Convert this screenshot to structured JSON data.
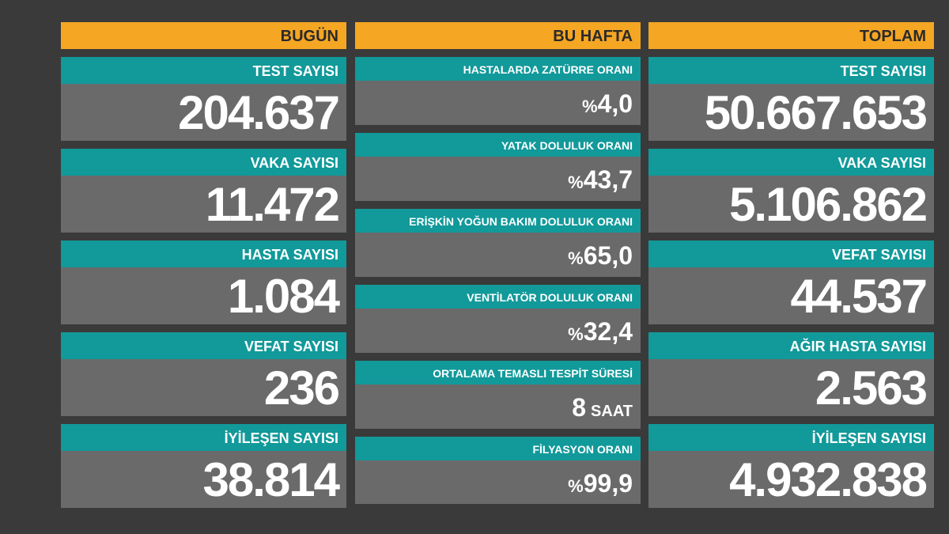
{
  "columns": [
    {
      "header": "BUGÜN",
      "items": [
        {
          "label": "TEST SAYISI",
          "value": "204.637"
        },
        {
          "label": "VAKA SAYISI",
          "value": "11.472"
        },
        {
          "label": "HASTA SAYISI",
          "value": "1.084"
        },
        {
          "label": "VEFAT SAYISI",
          "value": "236"
        },
        {
          "label": "İYİLEŞEN SAYISI",
          "value": "38.814"
        }
      ]
    },
    {
      "header": "BU HAFTA",
      "items": [
        {
          "label": "HASTALARDA ZATÜRRE ORANI",
          "prefix": "%",
          "value": "4,0"
        },
        {
          "label": "YATAK DOLULUK ORANI",
          "prefix": "%",
          "value": "43,7"
        },
        {
          "label": "ERİŞKİN YOĞUN BAKIM DOLULUK ORANI",
          "prefix": "%",
          "value": "65,0"
        },
        {
          "label": "VENTİLATÖR DOLULUK ORANI",
          "prefix": "%",
          "value": "32,4"
        },
        {
          "label": "ORTALAMA TEMASLI TESPİT SÜRESİ",
          "value": "8",
          "suffix": "SAAT"
        },
        {
          "label": "FİLYASYON ORANI",
          "prefix": "%",
          "value": "99,9"
        }
      ]
    },
    {
      "header": "TOPLAM",
      "items": [
        {
          "label": "TEST SAYISI",
          "value": "50.667.653"
        },
        {
          "label": "VAKA SAYISI",
          "value": "5.106.862"
        },
        {
          "label": "VEFAT SAYISI",
          "value": "44.537"
        },
        {
          "label": "AĞIR HASTA SAYISI",
          "value": "2.563"
        },
        {
          "label": "İYİLEŞEN SAYISI",
          "value": "4.932.838"
        }
      ]
    }
  ]
}
